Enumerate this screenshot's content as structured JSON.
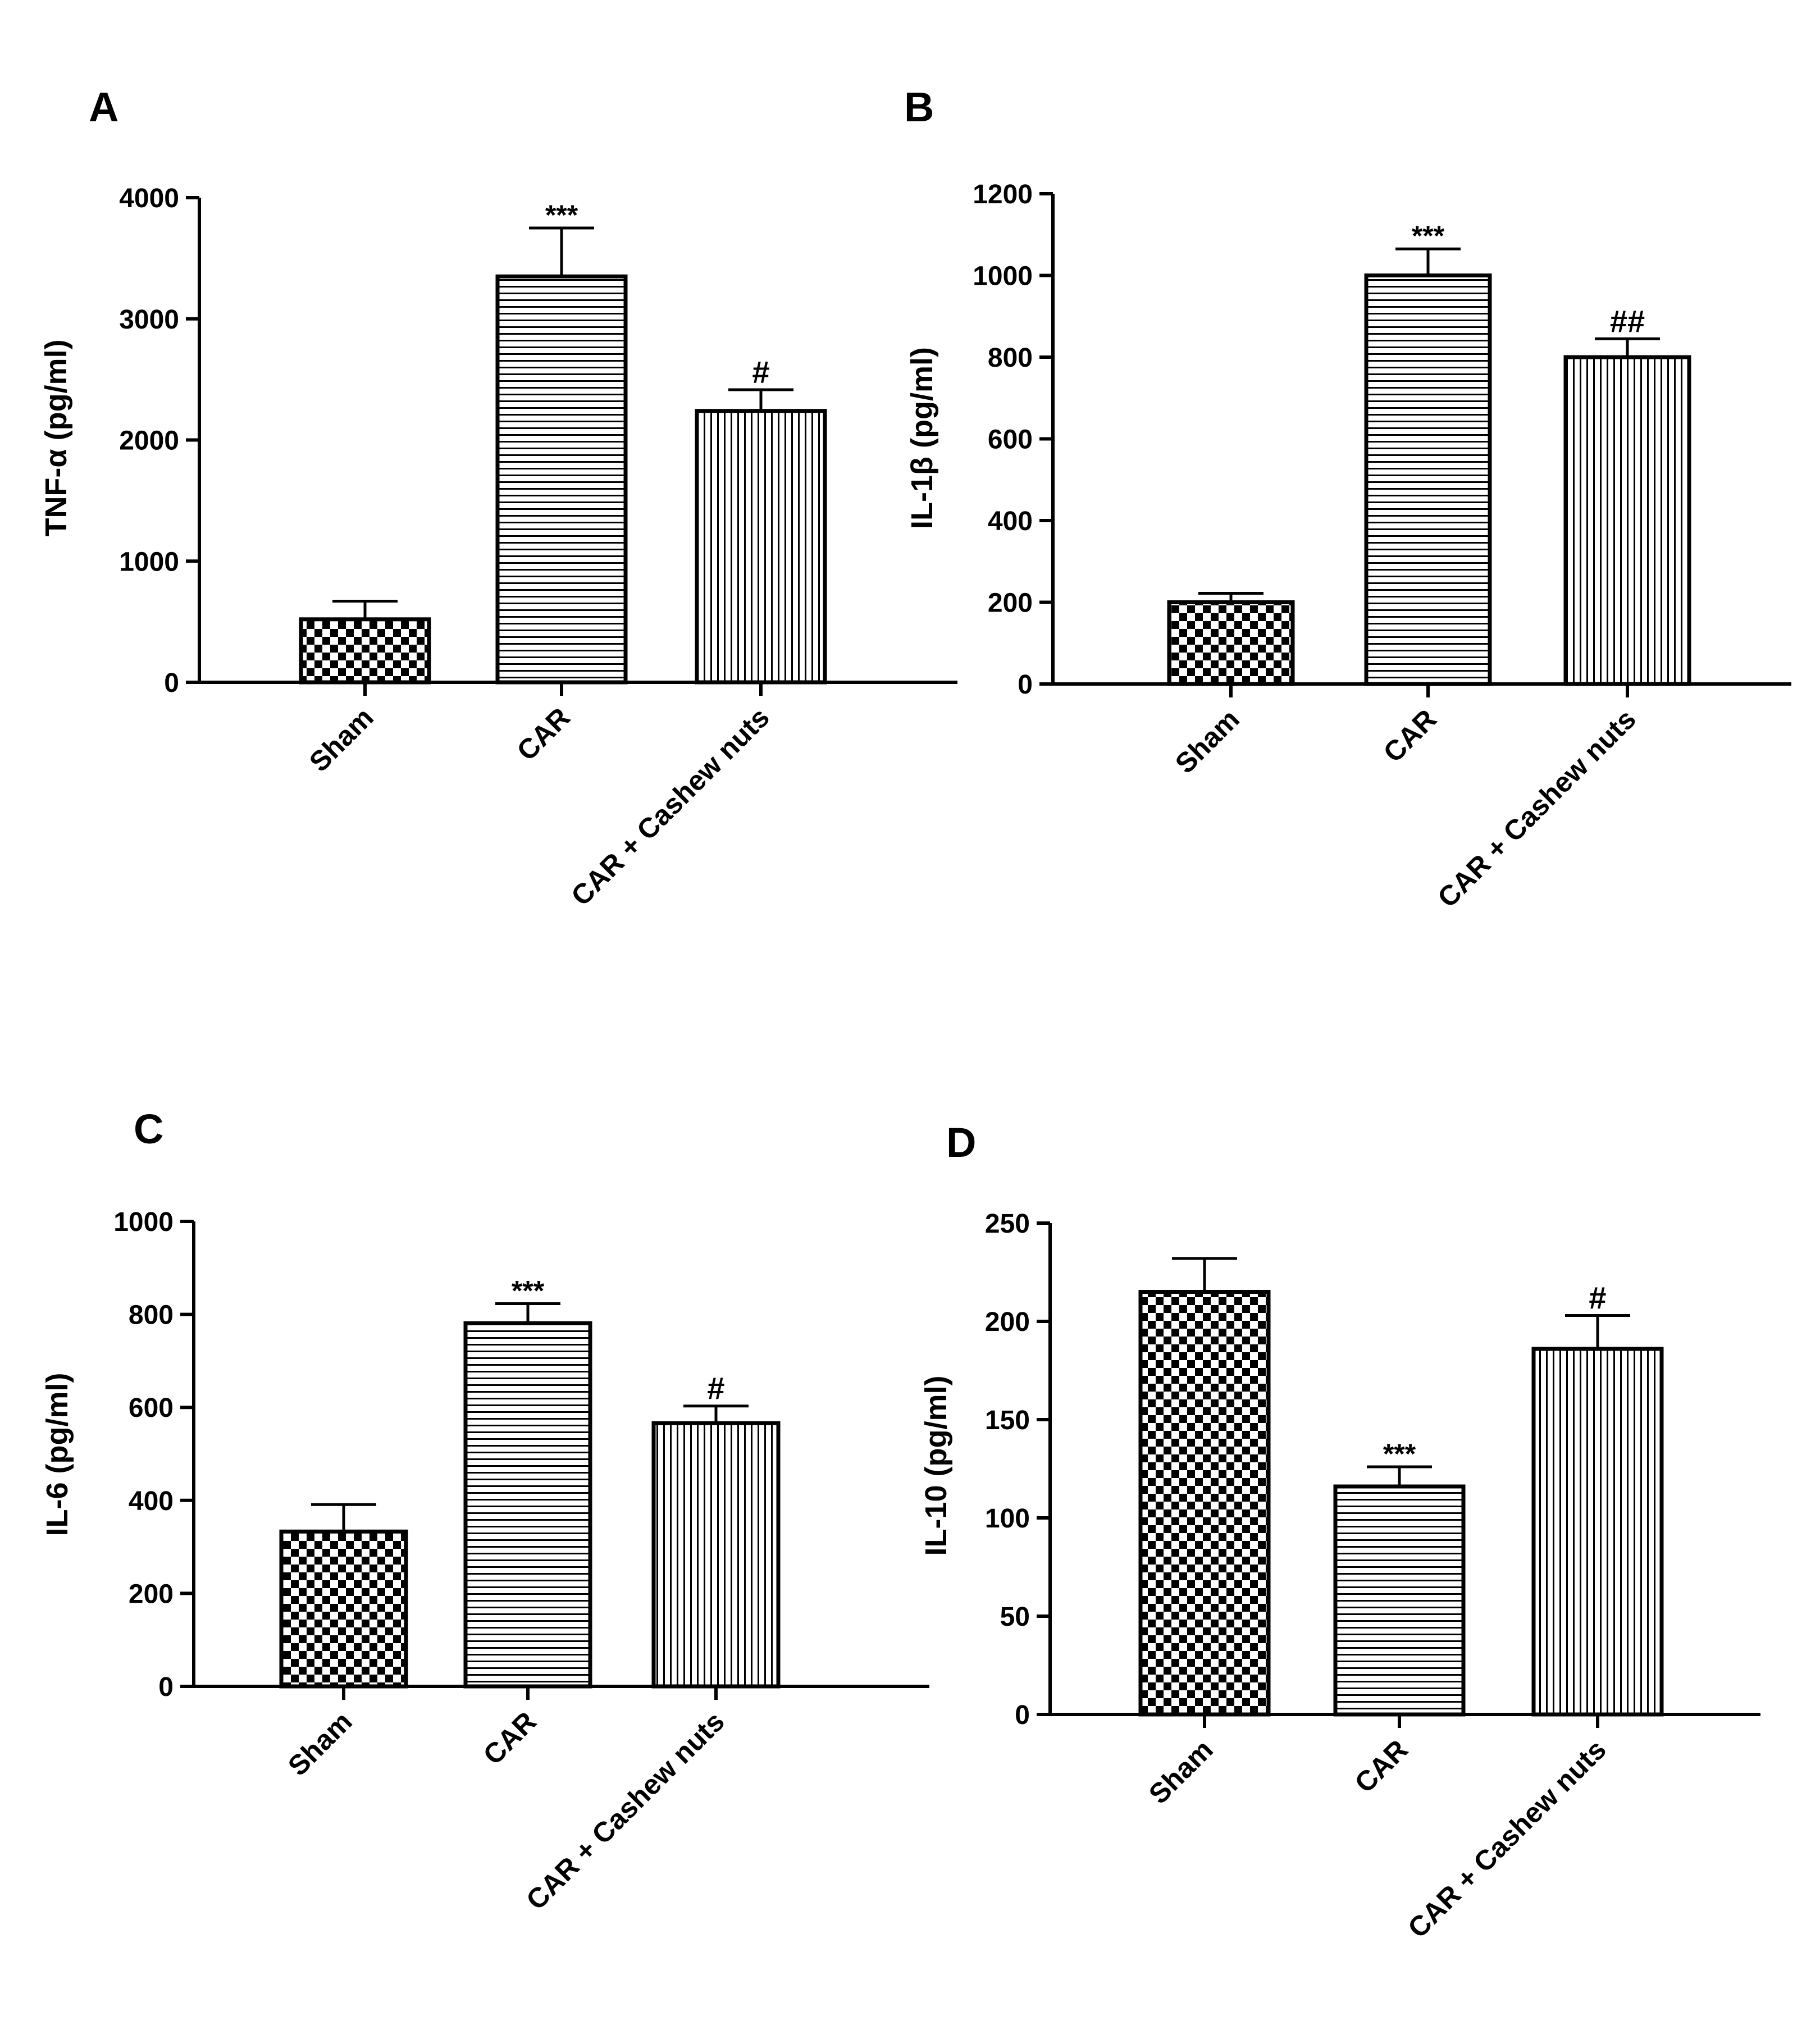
{
  "figure": {
    "panels": [
      "A",
      "B",
      "C",
      "D"
    ]
  },
  "chart_data": [
    {
      "panel": "A",
      "type": "bar",
      "title": "",
      "ylabel": "TNF-α (pg/ml)",
      "xlabel": "",
      "categories": [
        "Sham",
        "CAR",
        "CAR + Cashew nuts"
      ],
      "values": [
        520,
        3350,
        2240
      ],
      "errors": [
        150,
        400,
        175
      ],
      "annotations": [
        "",
        "***",
        "#"
      ],
      "patterns": [
        "checker",
        "horizontal",
        "vertical"
      ],
      "ylim": [
        0,
        4000
      ],
      "yticks": [
        0,
        1000,
        2000,
        3000,
        4000
      ],
      "ytick_labels": [
        "0",
        "1000",
        "2000",
        "3000",
        "4000"
      ]
    },
    {
      "panel": "B",
      "type": "bar",
      "title": "",
      "ylabel": "IL-1β (pg/ml)",
      "xlabel": "",
      "categories": [
        "Sham",
        "CAR",
        "CAR + Cashew nuts"
      ],
      "values": [
        200,
        1000,
        800
      ],
      "errors": [
        22,
        65,
        45
      ],
      "annotations": [
        "",
        "***",
        "##"
      ],
      "patterns": [
        "checker",
        "horizontal",
        "vertical"
      ],
      "ylim": [
        0,
        1200
      ],
      "yticks": [
        0,
        200,
        400,
        600,
        800,
        1000,
        1200
      ],
      "ytick_labels": [
        "0",
        "200",
        "400",
        "600",
        "800",
        "1000",
        "1200"
      ]
    },
    {
      "panel": "C",
      "type": "bar",
      "title": "",
      "ylabel": "IL-6 (pg/ml)",
      "xlabel": "",
      "categories": [
        "Sham",
        "CAR",
        "CAR + Cashew nuts"
      ],
      "values": [
        333,
        781,
        566
      ],
      "errors": [
        58,
        42,
        37
      ],
      "annotations": [
        "",
        "***",
        "#"
      ],
      "patterns": [
        "checker",
        "horizontal",
        "vertical"
      ],
      "ylim": [
        0,
        1000
      ],
      "yticks": [
        0,
        200,
        400,
        600,
        800,
        1000
      ],
      "ytick_labels": [
        "0",
        "200",
        "400",
        "600",
        "800",
        "1000"
      ]
    },
    {
      "panel": "D",
      "type": "bar",
      "title": "",
      "ylabel": "IL-10 (pg/ml)",
      "xlabel": "",
      "categories": [
        "Sham",
        "CAR",
        "CAR + Cashew nuts"
      ],
      "values": [
        215,
        116,
        186
      ],
      "errors": [
        17,
        10,
        17
      ],
      "annotations": [
        "",
        "***",
        "#"
      ],
      "patterns": [
        "checker",
        "horizontal",
        "vertical"
      ],
      "ylim": [
        0,
        250
      ],
      "yticks": [
        0,
        50,
        100,
        150,
        200,
        250
      ],
      "ytick_labels": [
        "0",
        "50",
        "100",
        "150",
        "200",
        "250"
      ]
    }
  ]
}
